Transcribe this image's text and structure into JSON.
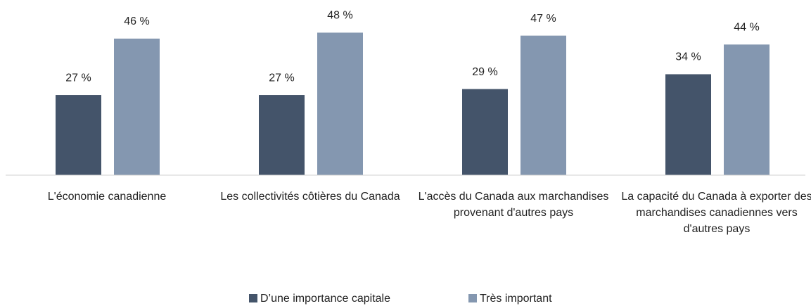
{
  "chart_data": {
    "type": "bar",
    "categories": [
      "L'économie canadienne",
      "Les collectivités côtières du Canada",
      "L'accès du Canada aux marchandises provenant d'autres pays",
      "La capacité du Canada à exporter des marchandises canadiennes vers d'autres pays"
    ],
    "series": [
      {
        "name": "D’une importance capitale",
        "color": "#44546a",
        "values": [
          27,
          27,
          29,
          34
        ],
        "value_labels": [
          "27 %",
          "27 %",
          "29 %",
          "34 %"
        ]
      },
      {
        "name": "Très important",
        "color": "#8497b0",
        "values": [
          46,
          48,
          47,
          44
        ],
        "value_labels": [
          "46 %",
          "48 %",
          "47 %",
          "44 %"
        ]
      }
    ],
    "ylim": [
      0,
      59
    ],
    "legend": "bottom"
  }
}
